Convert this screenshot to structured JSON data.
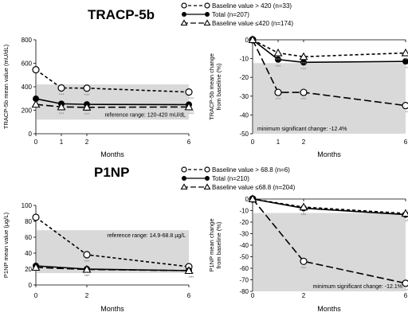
{
  "figure": {
    "sections": [
      {
        "heading": "TRACP-5b",
        "legend": [
          "Baseline value > 420 (n=33)",
          "Total (n=207)",
          "Baseline value ≤420 (n=174)"
        ]
      },
      {
        "heading": "P1NP",
        "legend": [
          "Baseline value > 68.8 (n=6)",
          "Total (n=210)",
          "Baseline value ≤68.8 (n=204)"
        ]
      }
    ]
  },
  "chart_data": [
    {
      "type": "line",
      "title": "TRACP-5b",
      "xlabel": "Months",
      "ylabel": "TRACP-5b mean value (mU/dL)",
      "x": [
        0,
        1,
        2,
        6
      ],
      "xticks": [
        0,
        1,
        2,
        6
      ],
      "xlim": [
        0,
        6
      ],
      "ylim": [
        0,
        800
      ],
      "yticks": [
        0,
        200,
        400,
        600,
        800
      ],
      "band": {
        "from": 120,
        "to": 420,
        "label": "reference range: 120-420 mU/dL"
      },
      "series": [
        {
          "name": "Baseline value > 420 (n=33)",
          "values": [
            545,
            390,
            388,
            355
          ],
          "marker": "open-circle",
          "line": "short-dash",
          "stars": [
            "",
            "***",
            "***",
            "***"
          ]
        },
        {
          "name": "Total (n=207)",
          "values": [
            298,
            255,
            250,
            248
          ],
          "marker": "filled-circle",
          "line": "solid",
          "stars": [
            "",
            "***",
            "***",
            "***"
          ]
        },
        {
          "name": "Baseline value ≤420 (n=174)",
          "values": [
            250,
            228,
            225,
            228
          ],
          "marker": "open-triangle",
          "line": "long-dash",
          "stars": [
            "",
            "***",
            "***",
            "***"
          ]
        }
      ]
    },
    {
      "type": "line",
      "xlabel": "Months",
      "ylabel": "TRACP-5b mean change from baseline (%)",
      "x": [
        0,
        1,
        2,
        6
      ],
      "xticks": [
        0,
        1,
        2,
        6
      ],
      "xlim": [
        0,
        6
      ],
      "ylim": [
        -50,
        0
      ],
      "yticks": [
        0,
        -10,
        -20,
        -30,
        -40,
        -50
      ],
      "band": {
        "from": -50,
        "to": -12.4,
        "label": "minimum significant change: -12.4%"
      },
      "series": [
        {
          "name": "Baseline value > 420 (n=33)",
          "values": [
            0,
            -28,
            -28,
            -35
          ],
          "marker": "open-circle",
          "line": "long-dash",
          "stars": [
            "",
            "***",
            "***",
            "***"
          ]
        },
        {
          "name": "Total (n=207)",
          "values": [
            0,
            -10.5,
            -12,
            -11.5
          ],
          "marker": "filled-circle",
          "line": "solid",
          "stars": [
            "",
            "***",
            "***",
            "***"
          ]
        },
        {
          "name": "Baseline value ≤420 (n=174)",
          "values": [
            0,
            -7,
            -9,
            -7
          ],
          "marker": "open-triangle",
          "line": "short-dash",
          "stars": [
            "",
            "***",
            "***",
            "***"
          ]
        }
      ]
    },
    {
      "type": "line",
      "title": "P1NP",
      "xlabel": "Months",
      "ylabel": "P1NP mean value (µg/L)",
      "x": [
        0,
        2,
        6
      ],
      "xticks": [
        0,
        2,
        6
      ],
      "xlim": [
        0,
        6
      ],
      "ylim": [
        0,
        100
      ],
      "yticks": [
        0,
        20,
        40,
        60,
        80,
        100
      ],
      "band": {
        "from": 14.9,
        "to": 68.8,
        "label": "reference range: 14.9-68.8 µg/L"
      },
      "series": [
        {
          "name": "Baseline value > 68.8 (n=6)",
          "values": [
            85,
            38,
            23
          ],
          "marker": "open-circle",
          "line": "short-dash",
          "stars": [
            "",
            "***",
            "***"
          ]
        },
        {
          "name": "Total (n=210)",
          "values": [
            24,
            20,
            18
          ],
          "marker": "filled-circle",
          "line": "solid",
          "stars": [
            "",
            "***",
            "***"
          ]
        },
        {
          "name": "Baseline value ≤68.8 (n=204)",
          "values": [
            22,
            19.5,
            18
          ],
          "marker": "open-triangle",
          "line": "long-dash",
          "stars": [
            "",
            "*",
            "*"
          ]
        }
      ]
    },
    {
      "type": "line",
      "xlabel": "Months",
      "ylabel": "P1NP mean change from baseline (%)",
      "x": [
        0,
        2,
        6
      ],
      "xticks": [
        0,
        2,
        6
      ],
      "xlim": [
        0,
        6
      ],
      "ylim": [
        -80,
        0
      ],
      "yticks": [
        0,
        -10,
        -20,
        -30,
        -40,
        -50,
        -60,
        -70,
        -80
      ],
      "band": {
        "from": -80,
        "to": -12.1,
        "label": "minimum significant change: -12.1%"
      },
      "series": [
        {
          "name": "Baseline value > 68.8 (n=6)",
          "values": [
            0,
            -54,
            -73
          ],
          "marker": "open-circle",
          "line": "long-dash",
          "stars": [
            "",
            "***",
            "***"
          ]
        },
        {
          "name": "Total (n=210)",
          "values": [
            0,
            -8,
            -13.5
          ],
          "marker": "filled-circle",
          "line": "solid",
          "stars": [
            "",
            "***",
            "***"
          ]
        },
        {
          "name": "Baseline value ≤68.8 (n=204)",
          "values": [
            0,
            -7,
            -12.5
          ],
          "marker": "open-triangle",
          "line": "short-dash",
          "stars": [
            "",
            "*",
            "*"
          ]
        }
      ]
    }
  ]
}
